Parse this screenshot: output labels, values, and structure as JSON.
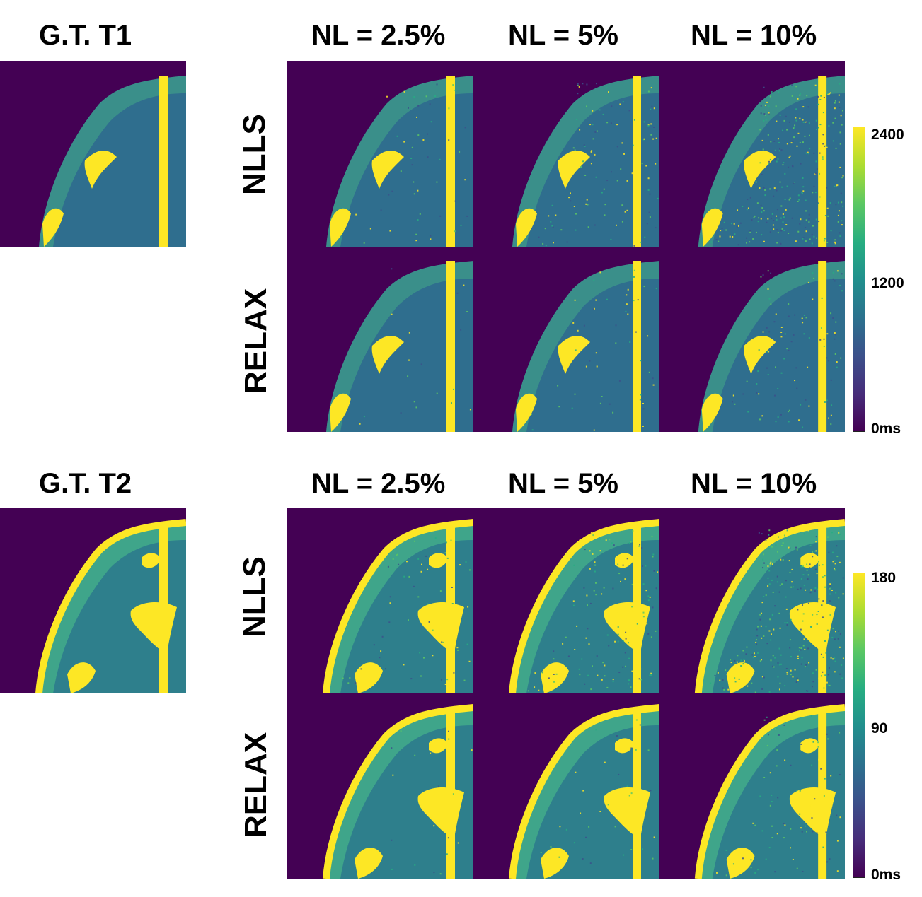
{
  "t1": {
    "gt_title": "G.T. T1",
    "column_titles": [
      "NL = 2.5%",
      "NL = 5%",
      "NL = 10%"
    ],
    "row_labels": [
      "NLLS",
      "RELAX"
    ],
    "colorbar_ticks": [
      "2400",
      "1200",
      "0ms"
    ]
  },
  "t2": {
    "gt_title": "G.T. T2",
    "column_titles": [
      "NL = 2.5%",
      "NL = 5%",
      "NL = 10%"
    ],
    "row_labels": [
      "NLLS",
      "RELAX"
    ],
    "colorbar_ticks": [
      "180",
      "90",
      "0ms"
    ]
  },
  "colormap": {
    "name": "viridis",
    "background": "#440154",
    "low": "#440154",
    "mid": "#21908d",
    "high": "#fde725"
  }
}
